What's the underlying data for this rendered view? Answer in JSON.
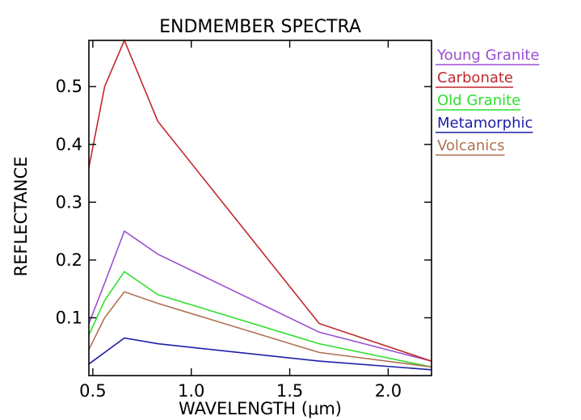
{
  "chart_data": {
    "type": "line",
    "title": "ENDMEMBER SPECTRA",
    "xlabel": "WAVELENGTH (μm)",
    "ylabel": "REFLECTANCE",
    "xlim": [
      0.48,
      2.22
    ],
    "ylim": [
      0.0,
      0.58
    ],
    "xticks": [
      0.5,
      1.0,
      1.5,
      2.0
    ],
    "xtick_labels": [
      "0.5",
      "1.0",
      "1.5",
      "2.0"
    ],
    "yticks": [
      0.1,
      0.2,
      0.3,
      0.4,
      0.5
    ],
    "ytick_labels": [
      "0.1",
      "0.2",
      "0.3",
      "0.4",
      "0.5"
    ],
    "grid": false,
    "legend_position": "right",
    "series": [
      {
        "name": "Young Granite",
        "color": "#9a4fd0",
        "x": [
          0.48,
          0.56,
          0.66,
          0.83,
          1.65,
          2.22
        ],
        "y": [
          0.09,
          0.16,
          0.25,
          0.21,
          0.075,
          0.025
        ]
      },
      {
        "name": "Carbonate",
        "color": "#c0282e",
        "x": [
          0.48,
          0.56,
          0.66,
          0.83,
          1.65,
          2.22
        ],
        "y": [
          0.36,
          0.5,
          0.58,
          0.44,
          0.09,
          0.025
        ]
      },
      {
        "name": "Old Granite",
        "color": "#2ee02e",
        "x": [
          0.48,
          0.56,
          0.66,
          0.83,
          1.65,
          2.22
        ],
        "y": [
          0.07,
          0.13,
          0.18,
          0.14,
          0.055,
          0.015
        ]
      },
      {
        "name": "Metamorphic",
        "color": "#1e1ea8",
        "x": [
          0.48,
          0.56,
          0.66,
          0.83,
          1.65,
          2.22
        ],
        "y": [
          0.02,
          0.04,
          0.065,
          0.055,
          0.025,
          0.01
        ]
      },
      {
        "name": "Volcanics",
        "color": "#b07050",
        "x": [
          0.48,
          0.56,
          0.66,
          0.83,
          1.65,
          2.22
        ],
        "y": [
          0.045,
          0.1,
          0.145,
          0.125,
          0.04,
          0.015
        ]
      }
    ]
  }
}
